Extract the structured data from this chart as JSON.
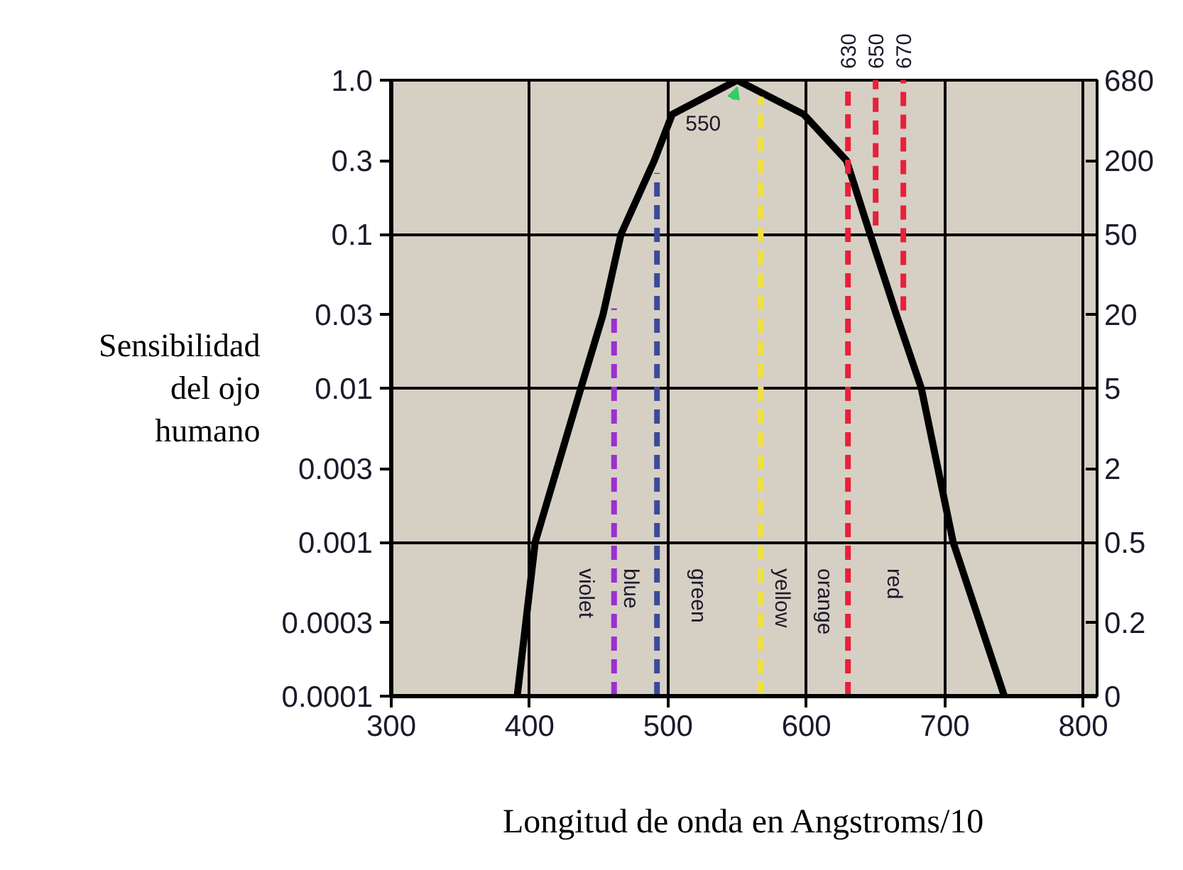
{
  "chart_data": {
    "type": "line",
    "xlabel": "Longitud de onda en Angstroms/10",
    "ylabel": "Sensibilidad del ojo humano",
    "log": true,
    "grid": true,
    "line_style": "solid",
    "marker": "none",
    "xlim": [
      300,
      810
    ],
    "xticks": [
      300,
      400,
      500,
      600,
      700,
      800
    ],
    "x2lim": [
      300,
      810
    ],
    "x2ticks": [
      630,
      650,
      670
    ],
    "ylim": [
      0.0001,
      1.0
    ],
    "yticks": [
      {
        "value": 1.0,
        "label": "1.0"
      },
      0.3,
      0.1,
      0.03,
      0.01,
      0.003,
      0.001,
      0.0003,
      0.0001
    ],
    "series": [
      {
        "color": "#000000",
        "x": [
          391,
          404,
          437,
          453,
          466,
          490,
          503,
          550,
          598,
          629,
          646,
          665,
          683,
          706,
          743
        ],
        "values": [
          0.0001,
          0.001,
          0.01,
          0.03,
          0.1,
          0.3,
          0.6,
          1.0,
          0.6,
          0.3,
          0.1,
          0.03,
          0.01,
          0.001,
          0.0001
        ]
      },
      {
        "color": "#9b30d0",
        "line_style": "dashed",
        "x": [
          461,
          461
        ],
        "values": [
          0.0001,
          0.033
        ]
      },
      {
        "color": "#3a4a9a",
        "line_style": "dashed",
        "x": [
          492,
          492
        ],
        "values": [
          0.0001,
          0.25
        ]
      },
      {
        "color": "#f0e040",
        "line_style": "dashed",
        "x": [
          567,
          567
        ],
        "values": [
          0.0001,
          0.78
        ]
      },
      {
        "color": "#e8203a",
        "line_style": "dashed",
        "x": [
          630,
          630
        ],
        "values": [
          0.0001,
          0.85
        ]
      },
      {
        "color": "#e8203a",
        "line_style": "dashed",
        "x": [
          650,
          650
        ],
        "values": [
          0.114,
          1.0
        ]
      },
      {
        "color": "#e8203a",
        "line_style": "dashed",
        "x": [
          670,
          670
        ],
        "values": [
          0.032,
          1.0
        ]
      }
    ],
    "annotations": [
      {
        "text": "550",
        "x": 550,
        "y": 1.0
      },
      "violet",
      "blue",
      "green",
      "yellow",
      "orange",
      "red",
      "680",
      "200",
      "50",
      "20",
      "5",
      "2",
      "0.5",
      "0.2",
      "0"
    ]
  }
}
